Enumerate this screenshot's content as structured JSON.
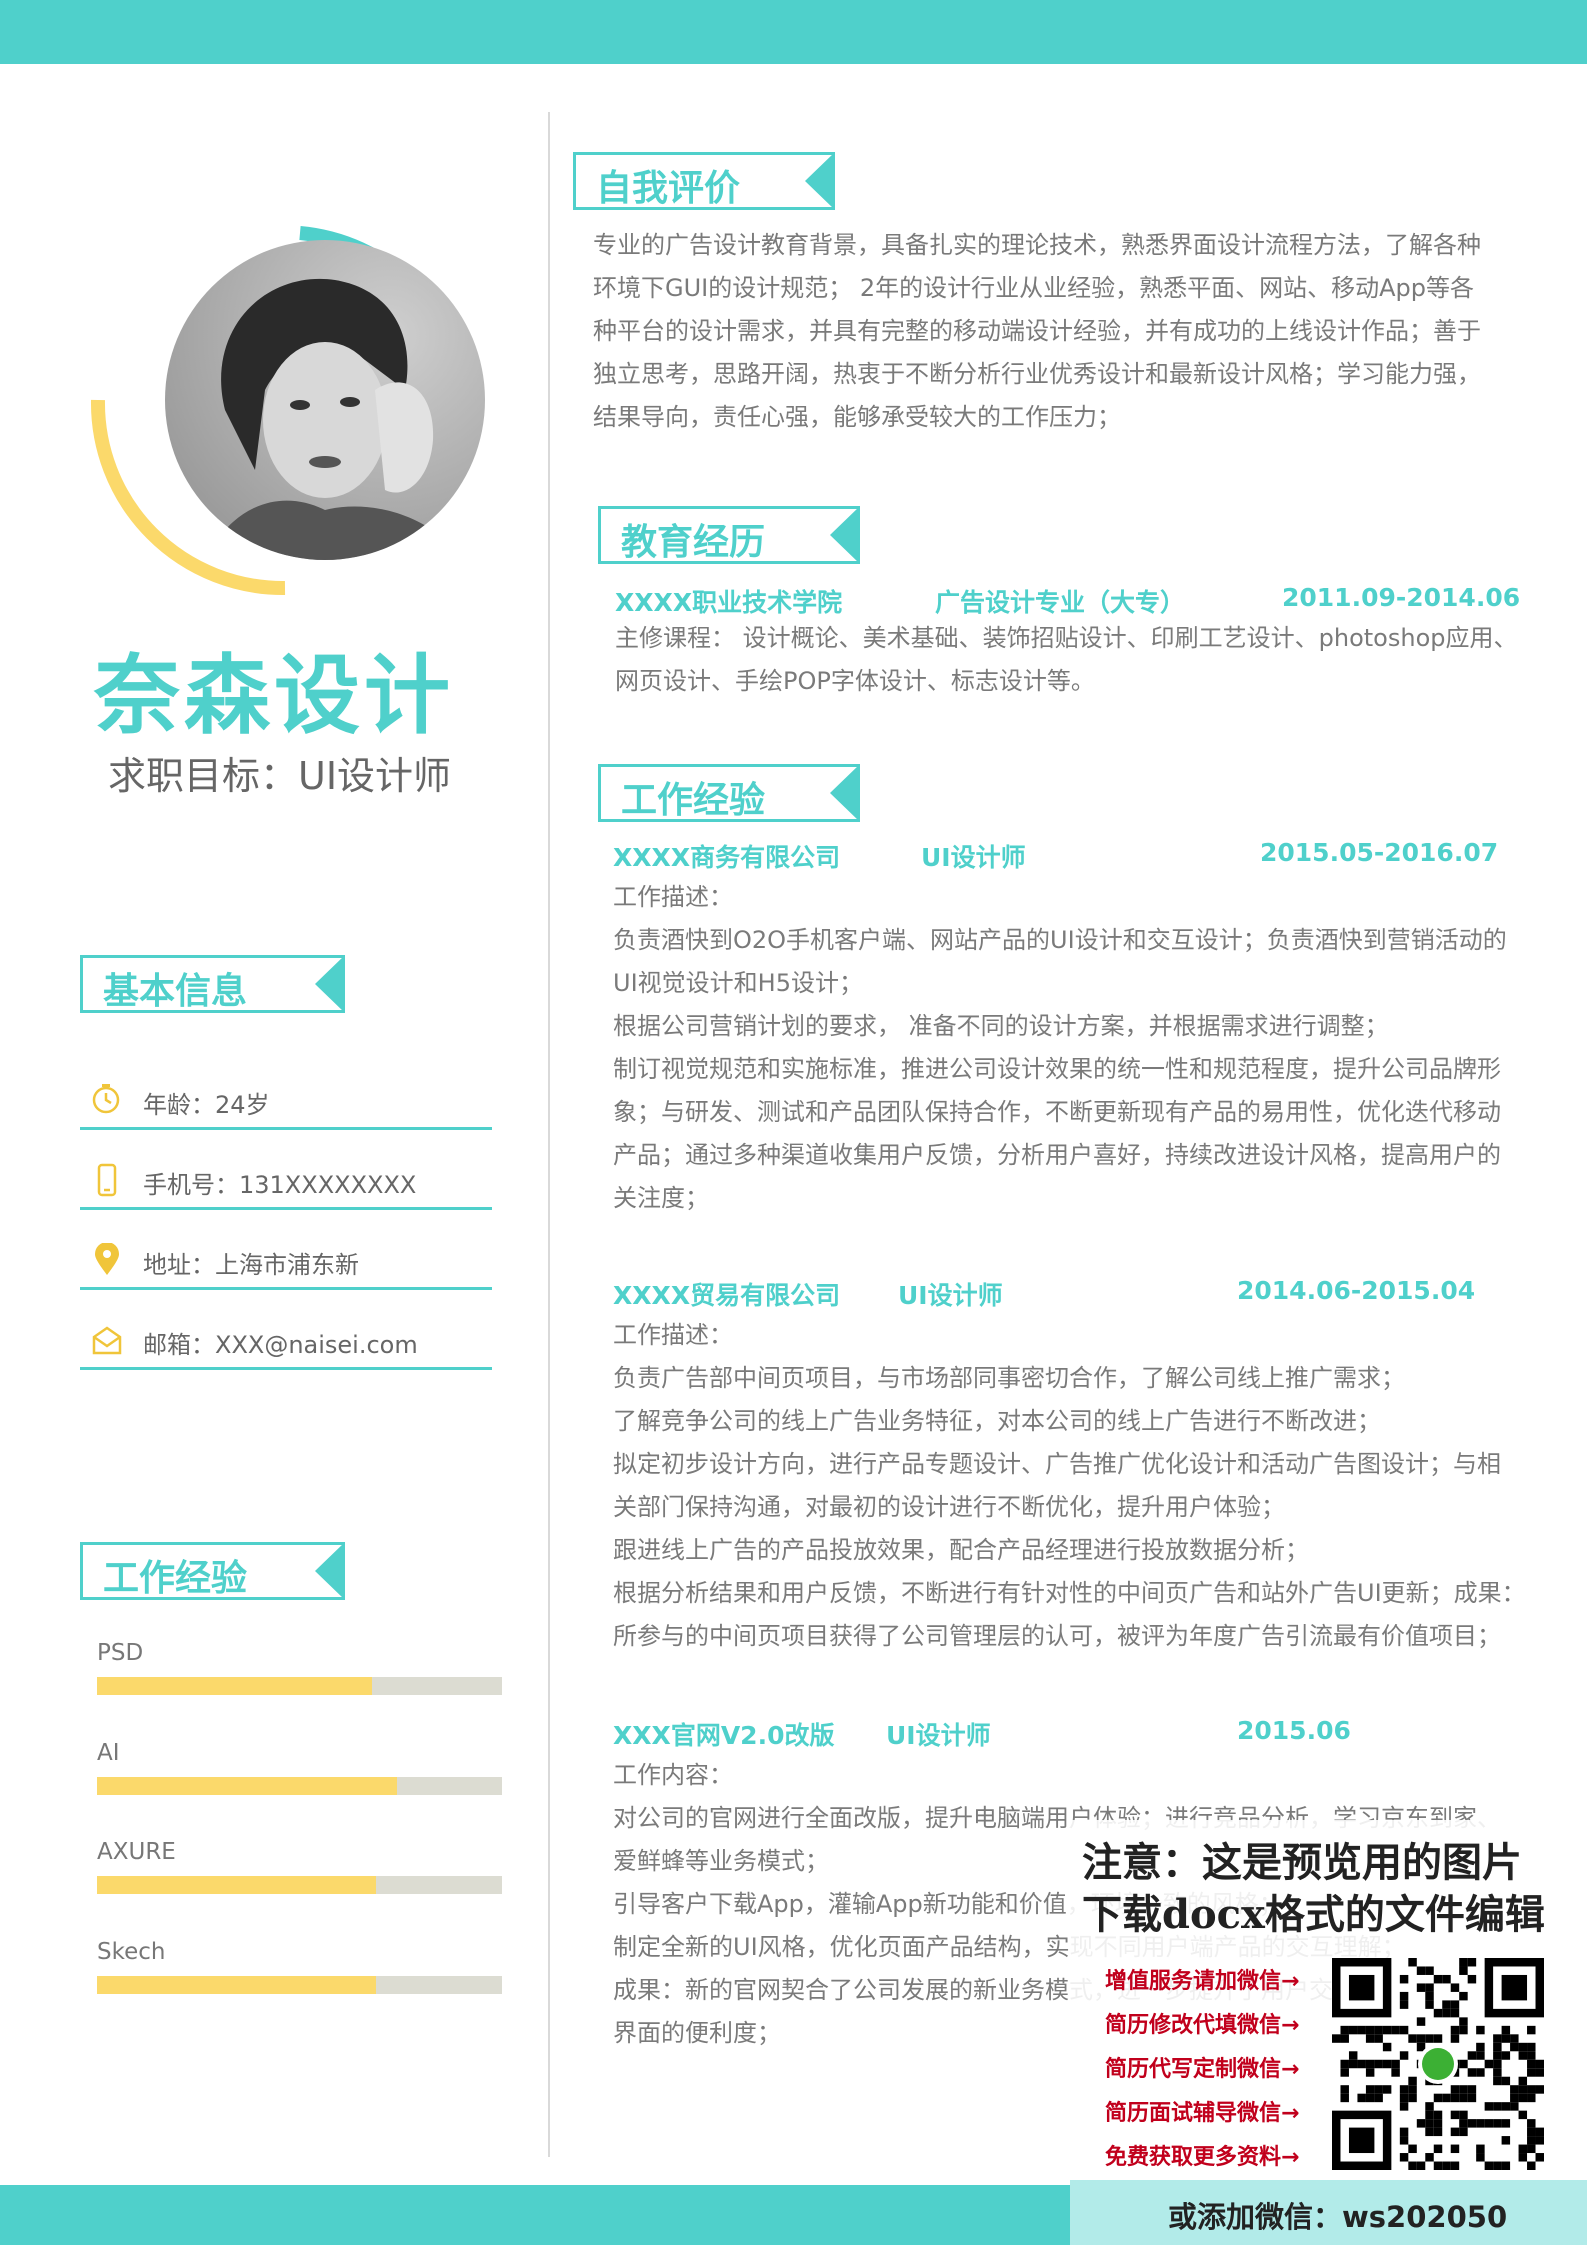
{
  "colors": {
    "accent": "#4fd0cb",
    "yellow": "#fbd96b",
    "text": "#7a7a7a"
  },
  "profile": {
    "name": "奈森设计",
    "target": "求职目标：UI设计师"
  },
  "sections": {
    "basic_info": "基本信息",
    "skills": "工作经验",
    "self_eval": "自我评价",
    "education": "教育经历",
    "work": "工作经验"
  },
  "info": [
    {
      "icon": "clock-icon",
      "text": "年龄：24岁"
    },
    {
      "icon": "phone-icon",
      "text": "手机号：131XXXXXXXX"
    },
    {
      "icon": "location-pin-icon",
      "text": "地址：上海市浦东新"
    },
    {
      "icon": "mail-icon",
      "text": "邮箱：XXX@naisei.com"
    }
  ],
  "skills": [
    {
      "name": "PSD",
      "level": 0.68
    },
    {
      "name": "AI",
      "level": 0.74
    },
    {
      "name": "AXURE",
      "level": 0.69
    },
    {
      "name": "Skech",
      "level": 0.69
    }
  ],
  "self_eval_lines": [
    "专业的广告设计教育背景，具备扎实的理论技术，熟悉界面设计流程方法，了解各种",
    "环境下GUI的设计规范； 2年的设计行业从业经验，熟悉平面、网站、移动App等各",
    "种平台的设计需求，并具有完整的移动端设计经验，并有成功的上线设计作品；善于",
    "独立思考，思路开阔，热衷于不断分析行业优秀设计和最新设计风格；学习能力强，",
    "结果导向，责任心强，能够承受较大的工作压力；"
  ],
  "education": {
    "school": "XXXX职业技术学院",
    "major": "广告设计专业（大专）",
    "dates": "2011.09-2014.06",
    "lines": [
      "主修课程： 设计概论、美术基础、装饰招贴设计、印刷工艺设计、photoshop应用、",
      "网页设计、手绘POP字体设计、标志设计等。"
    ]
  },
  "jobs": [
    {
      "company": "XXXX商务有限公司",
      "role": "UI设计师",
      "dates": "2015.05-2016.07",
      "lines": [
        "工作描述：",
        "负责酒快到O2O手机客户端、网站产品的UI设计和交互设计；负责酒快到营销活动的",
        "UI视觉设计和H5设计；",
        "根据公司营销计划的要求， 准备不同的设计方案，并根据需求进行调整；",
        "制订视觉规范和实施标准，推进公司设计效果的统一性和规范程度，提升公司品牌形",
        "象；与研发、测试和产品团队保持合作，不断更新现有产品的易用性，优化迭代移动",
        "产品；通过多种渠道收集用户反馈，分析用户喜好，持续改进设计风格，提高用户的",
        "关注度；"
      ]
    },
    {
      "company": "XXXX贸易有限公司",
      "role": "UI设计师",
      "dates": "2014.06-2015.04",
      "lines": [
        "工作描述：",
        "负责广告部中间页项目，与市场部同事密切合作，了解公司线上推广需求；",
        "了解竞争公司的线上广告业务特征，对本公司的线上广告进行不断改进；",
        "拟定初步设计方向，进行产品专题设计、广告推广优化设计和活动广告图设计；与相",
        "关部门保持沟通，对最初的设计进行不断优化，提升用户体验；",
        "跟进线上广告的产品投放效果，配合产品经理进行投放数据分析；",
        "根据分析结果和用户反馈，不断进行有针对性的中间页广告和站外广告UI更新；成果：",
        "所参与的中间页项目获得了公司管理层的认可，被评为年度广告引流最有价值项目；"
      ]
    },
    {
      "company": "XXX官网V2.0改版",
      "role": "UI设计师",
      "dates": "2015.06",
      "lines": [
        "工作内容：",
        "对公司的官网进行全面改版，提升电脑端用户体验；进行竞品分析，学习京东到家、",
        "爱鲜蜂等业务模式；",
        "引导客户下载App，灌输App新功能和价值，环境一致的风格；",
        "制定全新的UI风格，优化页面产品结构，实现不同用户端产品的交互理解；",
        "成果：新的官网契合了公司发展的新业务模式，进一步提升了用户交",
        "界面的便利度；"
      ]
    }
  ],
  "watermark": {
    "notice1": "注意：这是预览用的图片",
    "notice2": "下载docx格式的文件编辑",
    "links": [
      "增值服务请加微信→",
      "简历修改代填微信→",
      "简历代写定制微信→",
      "简历面试辅导微信→",
      "免费获取更多资料→"
    ],
    "wechat": "或添加微信：ws202050"
  }
}
